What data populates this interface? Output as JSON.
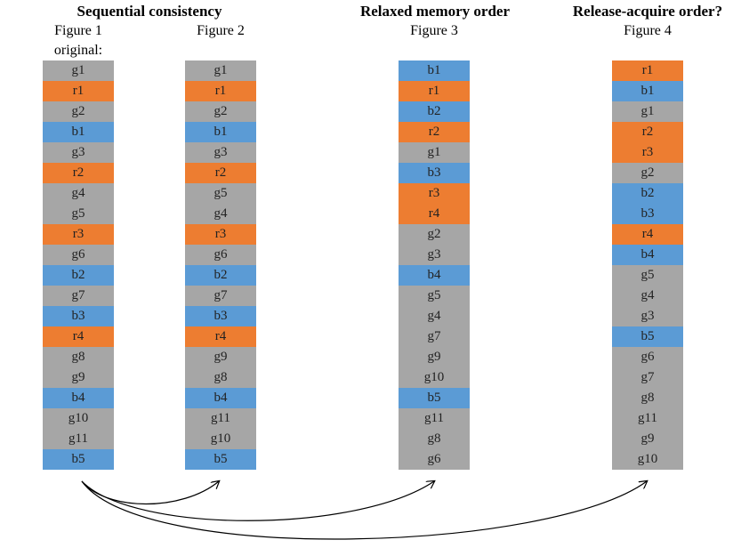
{
  "headings": {
    "sequential": "Sequential consistency",
    "relaxed": "Relaxed memory order",
    "release": "Release-acquire order?"
  },
  "figures": [
    {
      "label": "Figure 1",
      "sublabel": "original:",
      "cells": [
        "g1",
        "r1",
        "g2",
        "b1",
        "g3",
        "r2",
        "g4",
        "g5",
        "r3",
        "g6",
        "b2",
        "g7",
        "b3",
        "r4",
        "g8",
        "g9",
        "b4",
        "g10",
        "g11",
        "b5"
      ]
    },
    {
      "label": "Figure 2",
      "cells": [
        "g1",
        "r1",
        "g2",
        "b1",
        "g3",
        "r2",
        "g5",
        "g4",
        "r3",
        "g6",
        "b2",
        "g7",
        "b3",
        "r4",
        "g9",
        "g8",
        "b4",
        "g11",
        "g10",
        "b5"
      ]
    },
    {
      "label": "Figure 3",
      "cells": [
        "b1",
        "r1",
        "b2",
        "r2",
        "g1",
        "b3",
        "r3",
        "r4",
        "g2",
        "g3",
        "b4",
        "g5",
        "g4",
        "g7",
        "g9",
        "g10",
        "b5",
        "g11",
        "g8",
        "g6"
      ]
    },
    {
      "label": "Figure 4",
      "cells": [
        "r1",
        "b1",
        "g1",
        "r2",
        "r3",
        "g2",
        "b2",
        "b3",
        "r4",
        "b4",
        "g5",
        "g4",
        "g3",
        "b5",
        "g6",
        "g7",
        "g8",
        "g11",
        "g9",
        "g10"
      ]
    }
  ],
  "colors": {
    "g": "#a6a6a6",
    "r": "#ed7d31",
    "b": "#5b9bd5",
    "arrow": "#000000"
  }
}
